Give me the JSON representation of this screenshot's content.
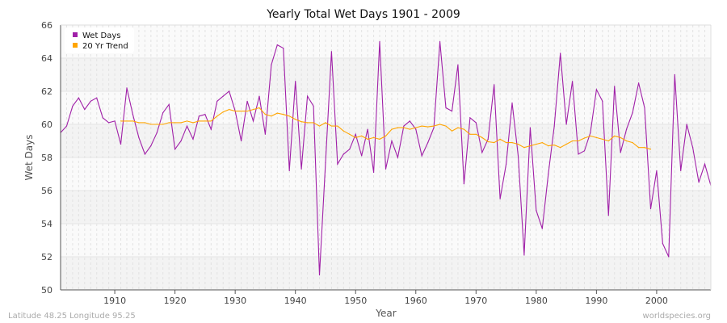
{
  "chart_data": {
    "type": "line",
    "title": "Yearly Total Wet Days 1901 - 2009",
    "xlabel": "Year",
    "ylabel": "Wet Days",
    "xlim": [
      1901,
      2009
    ],
    "ylim": [
      50,
      66
    ],
    "x_ticks": [
      1910,
      1920,
      1930,
      1940,
      1950,
      1960,
      1970,
      1980,
      1990,
      2000
    ],
    "y_ticks": [
      50,
      52,
      54,
      56,
      58,
      60,
      62,
      64,
      66
    ],
    "grid": true,
    "legend_position": "top-left",
    "series": [
      {
        "name": "Wet Days",
        "color": "#a020a8",
        "x_start": 1901,
        "values": [
          59.5,
          59.9,
          61.1,
          61.6,
          60.9,
          61.4,
          61.6,
          60.4,
          60.1,
          60.2,
          58.8,
          62.2,
          60.6,
          59.2,
          58.2,
          58.7,
          59.5,
          60.7,
          61.2,
          58.5,
          59.0,
          59.9,
          59.1,
          60.5,
          60.6,
          59.7,
          61.4,
          61.7,
          62.0,
          60.8,
          59.0,
          61.4,
          60.2,
          61.7,
          59.4,
          63.6,
          64.8,
          64.6,
          57.2,
          62.6,
          57.3,
          61.7,
          61.1,
          50.9,
          57.7,
          64.4,
          57.6,
          58.2,
          58.5,
          59.4,
          58.1,
          59.7,
          57.1,
          65.0,
          57.3,
          59.0,
          58.0,
          59.9,
          60.2,
          59.7,
          58.1,
          58.9,
          59.8,
          65.0,
          61.0,
          60.8,
          63.6,
          56.4,
          60.4,
          60.1,
          58.3,
          59.1,
          62.4,
          55.5,
          57.6,
          61.3,
          58.1,
          52.1,
          59.8,
          54.8,
          53.7,
          57.0,
          59.9,
          64.3,
          60.0,
          62.6,
          58.2,
          58.4,
          59.5,
          62.1,
          61.4,
          54.5,
          62.3,
          58.3,
          59.7,
          60.7,
          62.5,
          61.0,
          54.9,
          57.2,
          52.8,
          52.0,
          63.0,
          57.2,
          60.0,
          58.6,
          56.5,
          57.6,
          56.3
        ]
      },
      {
        "name": "20 Yr Trend",
        "color": "#ffa500",
        "x_start": 1911,
        "values": [
          60.2,
          60.2,
          60.2,
          60.1,
          60.1,
          60.0,
          60.0,
          60.0,
          60.1,
          60.1,
          60.1,
          60.2,
          60.1,
          60.2,
          60.2,
          60.2,
          60.5,
          60.75,
          60.9,
          60.8,
          60.8,
          60.8,
          60.9,
          61.0,
          60.6,
          60.5,
          60.68,
          60.6,
          60.5,
          60.3,
          60.16,
          60.1,
          60.1,
          59.9,
          60.1,
          59.9,
          59.9,
          59.6,
          59.4,
          59.2,
          59.3,
          59.1,
          59.2,
          59.1,
          59.3,
          59.7,
          59.8,
          59.8,
          59.7,
          59.8,
          59.9,
          59.85,
          59.9,
          60.0,
          59.9,
          59.6,
          59.8,
          59.7,
          59.4,
          59.4,
          59.2,
          58.95,
          58.9,
          59.1,
          58.9,
          58.9,
          58.8,
          58.6,
          58.7,
          58.8,
          58.9,
          58.7,
          58.75,
          58.6,
          58.8,
          59.0,
          59.0,
          59.17,
          59.3,
          59.2,
          59.1,
          59.0,
          59.3,
          59.2,
          59.0,
          58.9,
          58.6,
          58.6,
          58.5
        ]
      }
    ]
  },
  "footer": {
    "left": "Latitude 48.25 Longitude 95.25",
    "right": "worldspecies.org"
  }
}
